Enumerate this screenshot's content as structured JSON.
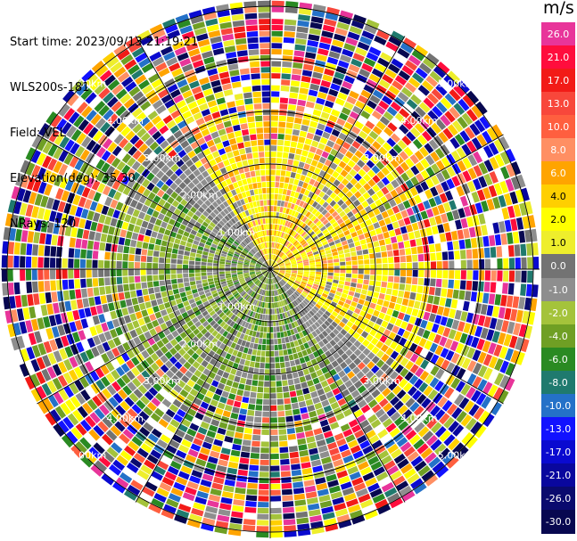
{
  "info": {
    "start_time": "Start time: 2023/09/13 21:19:21",
    "instrument": "WLS200s-181",
    "field": "Field: VEL",
    "elevation": "Elevation(deg): 35.30",
    "nrays": "NRays: 120"
  },
  "colorbar": {
    "unit": "m/s",
    "levels": [
      {
        "label": "26.0",
        "color": "#e8359a"
      },
      {
        "label": "21.0",
        "color": "#ff0d3d"
      },
      {
        "label": "17.0",
        "color": "#f21b17"
      },
      {
        "label": "13.0",
        "color": "#f8473b"
      },
      {
        "label": "10.0",
        "color": "#ff5f3f"
      },
      {
        "label": "8.0",
        "color": "#ff8f63"
      },
      {
        "label": "6.0",
        "color": "#ffa400"
      },
      {
        "label": "4.0",
        "color": "#ffcf00"
      },
      {
        "label": "2.0",
        "color": "#ffff00"
      },
      {
        "label": "1.0",
        "color": "#eeee2c"
      },
      {
        "label": "0.0",
        "color": "#737373"
      },
      {
        "label": "-1.0",
        "color": "#8e8e8e"
      },
      {
        "label": "-2.0",
        "color": "#a4c33b"
      },
      {
        "label": "-4.0",
        "color": "#6f9f24"
      },
      {
        "label": "-6.0",
        "color": "#2a8a22"
      },
      {
        "label": "-8.0",
        "color": "#1f7a6e"
      },
      {
        "label": "-10.0",
        "color": "#2471c8"
      },
      {
        "label": "-13.0",
        "color": "#1212ff"
      },
      {
        "label": "-17.0",
        "color": "#0a0ad0"
      },
      {
        "label": "-21.0",
        "color": "#09079e"
      },
      {
        "label": "-26.0",
        "color": "#0a0a6e"
      },
      {
        "label": "-30.0",
        "color": "#080850"
      }
    ]
  },
  "range_rings": [
    {
      "label": "1.00km"
    },
    {
      "label": "2.00km"
    },
    {
      "label": "3.00km"
    },
    {
      "label": "4.00km"
    },
    {
      "label": "5.00km"
    }
  ]
}
